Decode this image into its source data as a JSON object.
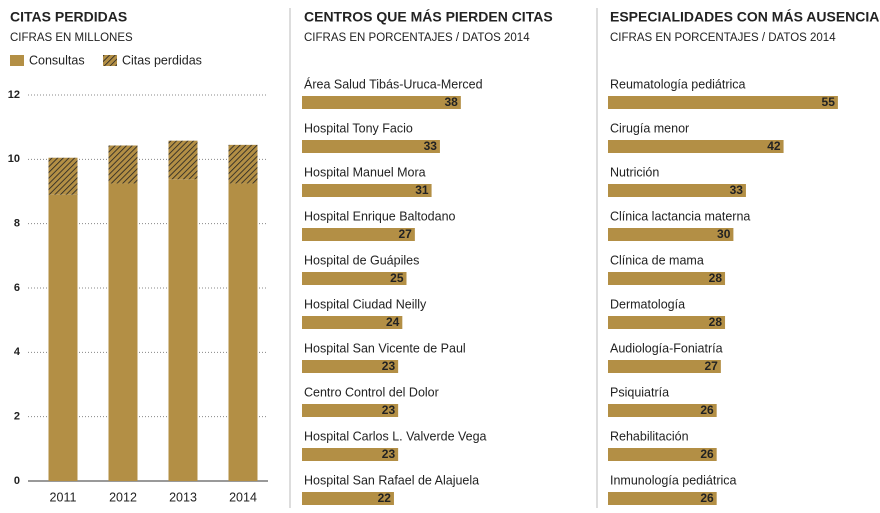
{
  "chart_data": [
    {
      "type": "bar",
      "stacked": true,
      "title": "CITAS PERDIDAS",
      "subtitle": "CIFRAS EN MILLONES",
      "categories": [
        "2011",
        "2012",
        "2013",
        "2014"
      ],
      "series": [
        {
          "name": "Consultas",
          "color": "#b38f45",
          "values": [
            8.9,
            9.25,
            9.38,
            9.25
          ]
        },
        {
          "name": "Citas perdidas",
          "color": "#b38f45",
          "pattern": "hatch",
          "values": [
            1.15,
            1.18,
            1.2,
            1.2
          ]
        }
      ],
      "ylim": [
        0,
        12
      ],
      "yticks": [
        0,
        2,
        4,
        6,
        8,
        10,
        12
      ],
      "grid": true,
      "legend": "top"
    },
    {
      "type": "bar",
      "orientation": "horizontal",
      "title": "CENTROS QUE MÁS PIERDEN CITAS",
      "subtitle": "CIFRAS EN PORCENTAJES / DATOS 2014",
      "categories": [
        "Área Salud Tibás-Uruca-Merced",
        "Hospital Tony Facio",
        "Hospital Manuel Mora",
        "Hospital Enrique Baltodano",
        "Hospital de Guápiles",
        "Hospital Ciudad Neilly",
        "Hospital San Vicente de Paul",
        "Centro Control del Dolor",
        "Hospital Carlos L. Valverde Vega",
        "Hospital San Rafael de Alajuela"
      ],
      "values": [
        38,
        33,
        31,
        27,
        25,
        24,
        23,
        23,
        23,
        22
      ],
      "color": "#b38f45"
    },
    {
      "type": "bar",
      "orientation": "horizontal",
      "title": "ESPECIALIDADES CON MÁS AUSENCIAS",
      "subtitle": "CIFRAS EN PORCENTAJES / DATOS 2014",
      "categories": [
        "Reumatología pediátrica",
        "Cirugía menor",
        "Nutrición",
        "Clínica lactancia materna",
        "Clínica de mama",
        "Dermatología",
        "Audiología-Foniatría",
        "Psiquiatría",
        "Rehabilitación",
        "Inmunología pediátrica"
      ],
      "values": [
        55,
        42,
        33,
        30,
        28,
        28,
        27,
        26,
        26,
        26
      ],
      "color": "#b38f45"
    }
  ]
}
